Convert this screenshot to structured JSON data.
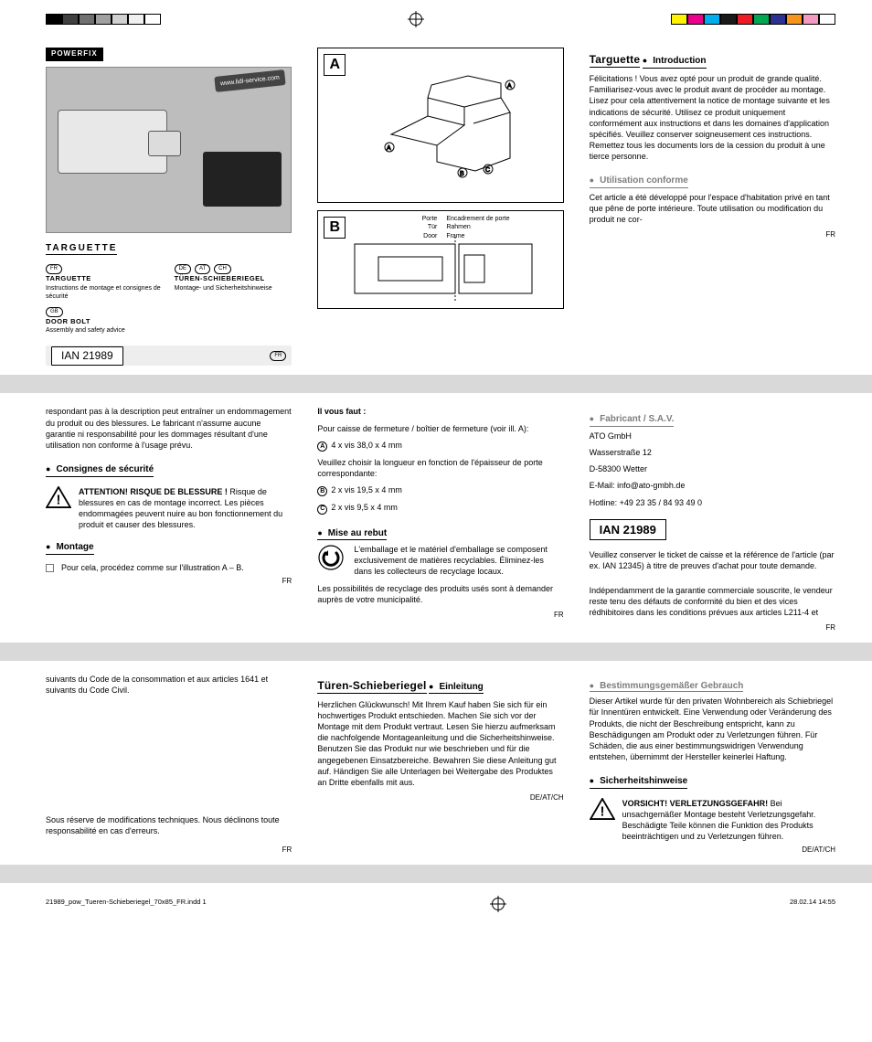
{
  "printbar": {
    "swatches_left": [
      "#000000",
      "#404040",
      "#707070",
      "#a0a0a0",
      "#d0d0d0",
      "#f0f0f0",
      "#ffffff"
    ],
    "swatches_right": [
      "#fff200",
      "#ec008c",
      "#00aeef",
      "#1a1a1a",
      "#ed1c24",
      "#00a651",
      "#2e3192",
      "#f7941d",
      "#f49ac1",
      "#ffffff"
    ]
  },
  "brand": "POWERFIX",
  "cover": {
    "ribbon": "www.lidl-service.com",
    "title": "TARGUETTE",
    "fr": {
      "pill": "FR",
      "name": "TARGUETTE",
      "sub": "Instructions de montage et consignes de sécurité"
    },
    "de": {
      "pills": [
        "DE",
        "AT",
        "CH"
      ],
      "name": "TÜREN-SCHIEBERIEGEL",
      "sub": "Montage- und Sicherheitshinweise"
    },
    "gb": {
      "pill": "GB",
      "name": "DOOR BOLT",
      "sub": "Assembly and safety advice"
    },
    "ian": "IAN 21989",
    "ian_pill": "FR"
  },
  "diag": {
    "A": "A",
    "B": "B",
    "labels_left": [
      "Porte",
      "Tür",
      "Door"
    ],
    "labels_right": [
      "Encadrement de porte",
      "Rahmen",
      "Frame"
    ]
  },
  "col3a": {
    "title": "Targuette",
    "intro_h": "Introduction",
    "intro_p": "Félicitations ! Vous avez opté pour un produit de grande qualité. Familiarisez-vous avec le produit avant de procéder au montage. Lisez pour cela attentivement la notice de montage suivante et les indications de sécurité. Utilisez ce produit uniquement conformément aux instructions et dans les domaines d'application spécifiés. Veuillez conserver soigneusement ces instructions. Remettez tous les documents lors de la cession du produit à une tierce personne.",
    "use_h": "Utilisation conforme",
    "use_p": "Cet article a été développé pour l'espace d'habitation privé en tant que pêne de porte intérieure. Toute utilisation ou modification du produit ne cor-"
  },
  "row2": {
    "c1": {
      "cont": "respondant pas à la description peut entraîner un endommagement du produit ou des blessures. Le fabricant n'assume aucune garantie ni responsabilité pour les dommages résultant d'une utilisation non conforme à l'usage prévu.",
      "sec1": "Consignes de sécurité",
      "warn_b": "ATTENTION! RISQUE DE BLESSURE !",
      "warn_t": " Risque de blessures en cas de montage incorrect. Les pièces endommagées peuvent nuire au bon fonctionnement du produit et causer des blessures.",
      "sec2": "Montage",
      "mont": "Pour cela, procédez comme sur l'illustration A – B."
    },
    "c2": {
      "need_h": "Il vous faut :",
      "need_l1": "Pour caisse de fermeture / boîtier de fermeture (voir ill. A):",
      "A": "4 x vis 38,0 x 4 mm",
      "need_l2": "Veuillez choisir la longueur en fonction de l'épaisseur de porte correspondante:",
      "B": "2 x vis 19,5 x 4 mm",
      "C": "2 x vis 9,5 x 4 mm",
      "reb_h": "Mise au rebut",
      "reb_p": "L'emballage et le matériel d'emballage se composent exclusivement de matières recyclables. Éliminez-les dans les collecteurs de recyclage locaux.",
      "reb_p2": "Les possibilités de recyclage des produits usés sont à demander auprès de votre municipalité."
    },
    "c3": {
      "fab_h": "Fabricant / S.A.V.",
      "l1": "ATO GmbH",
      "l2": "Wasserstraße 12",
      "l3": "D-58300 Wetter",
      "l4": "E-Mail:   info@ato-gmbh.de",
      "l5": "Hotline:  +49 23 35 / 84 93 49 0",
      "ian": "IAN 21989",
      "p1": "Veuillez conserver le ticket de caisse et la référence de l'article (par ex. IAN 12345) à titre de preuves d'achat pour toute demande.",
      "p2": "Indépendamment de la garantie commerciale souscrite, le vendeur reste tenu des défauts de conformité du bien et des vices rédhibitoires dans les conditions prévues aux articles L211-4 et"
    }
  },
  "row3r": {
    "c1": {
      "p1": "suivants du Code de la consommation et aux articles 1641 et suivants du Code Civil.",
      "p2": "Sous réserve de modifications techniques. Nous déclinons toute responsabilité en cas d'erreurs."
    },
    "c2": {
      "title": "Türen-Schieberiegel",
      "h": "Einleitung",
      "p": "Herzlichen Glückwunsch! Mit Ihrem Kauf haben Sie sich für ein hochwertiges Produkt entschieden. Machen Sie sich vor der Montage mit dem Produkt vertraut. Lesen Sie hierzu aufmerksam die nachfolgende Montageanleitung und die Sicherheitshinweise. Benutzen Sie das Produkt nur wie beschrieben und für die angegebenen Einsatzbereiche. Bewahren Sie diese Anleitung gut auf. Händigen Sie alle Unterlagen bei Weitergabe des Produktes an Dritte ebenfalls mit aus."
    },
    "c3": {
      "h1": "Bestimmungsgemäßer Gebrauch",
      "p1": "Dieser Artikel wurde für den privaten Wohnbereich als Schiebriegel für Innentüren entwickelt. Eine Verwendung oder Veränderung des Produkts, die nicht der Beschreibung entspricht, kann zu Beschädigungen am Produkt oder zu Verletzungen führen. Für Schäden, die aus einer bestimmungswidrigen Verwendung entstehen, übernimmt der Hersteller keinerlei Haftung.",
      "h2": "Sicherheitshinweise",
      "warn_b": "VORSICHT! VERLETZUNGSGEFAHR!",
      "warn_t": " Bei unsachgemäßer Montage besteht Verletzungsgefahr. Beschädigte Teile können die Funktion des Produkts beeinträchtigen und zu Verletzungen führen."
    }
  },
  "marks": {
    "FR": "FR",
    "DE": "DE/AT/CH"
  },
  "foot": {
    "left": "21989_pow_Tueren-Schieberiegel_70x85_FR.indd   1",
    "right": "28.02.14   14:55"
  }
}
